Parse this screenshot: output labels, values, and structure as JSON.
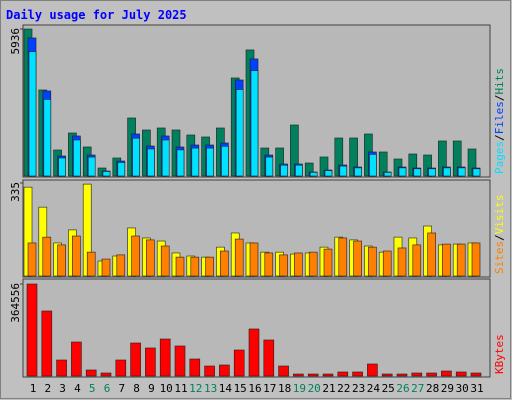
{
  "chart_data": [
    {
      "type": "bar",
      "title": "Daily usage for July 2025",
      "ylim": [
        0,
        5936
      ],
      "yticks": [
        5936
      ],
      "legend_separator": "/",
      "series": [
        {
          "name": "Hits",
          "color": "#00805c",
          "values": [
            5936,
            3474,
            1050,
            1737,
            1172,
            323,
            727,
            2343,
            1858,
            1939,
            1858,
            1656,
            1576,
            1939,
            3959,
            5090,
            1131,
            1131,
            2060,
            525,
            768,
            1535,
            1535,
            1697,
            970,
            687,
            889,
            848,
            1414,
            1414,
            1091
          ]
        },
        {
          "name": "Files",
          "color": "#0040ff",
          "values": [
            5575,
            3434,
            808,
            1616,
            848,
            202,
            606,
            1697,
            1212,
            1616,
            1172,
            1252,
            1252,
            1333,
            3878,
            4727,
            848,
            485,
            485,
            162,
            242,
            444,
            364,
            970,
            162,
            364,
            323,
            323,
            364,
            364,
            323
          ]
        },
        {
          "name": "Pages",
          "color": "#00e0ff",
          "values": [
            5018,
            3091,
            727,
            1454,
            763,
            182,
            545,
            1527,
            1091,
            1454,
            1055,
            1127,
            1127,
            1200,
            3490,
            4254,
            763,
            437,
            437,
            146,
            218,
            400,
            328,
            873,
            146,
            328,
            291,
            291,
            328,
            328,
            291
          ]
        }
      ]
    },
    {
      "type": "bar",
      "ylim": [
        0,
        335
      ],
      "yticks": [
        335
      ],
      "legend_separator": "/",
      "series": [
        {
          "name": "Visits",
          "color": "#ffff00",
          "values": [
            320,
            248,
            119,
            166,
            331,
            54,
            72,
            173,
            137,
            126,
            83,
            72,
            68,
            104,
            155,
            119,
            86,
            86,
            79,
            83,
            104,
            140,
            130,
            108,
            86,
            140,
            137,
            180,
            112,
            115,
            119
          ]
        },
        {
          "name": "Sites",
          "color": "#ff8000",
          "values": [
            119,
            140,
            112,
            144,
            86,
            61,
            76,
            144,
            130,
            108,
            68,
            68,
            68,
            90,
            133,
            119,
            83,
            76,
            83,
            86,
            97,
            137,
            126,
            104,
            90,
            101,
            112,
            155,
            115,
            115,
            119
          ]
        }
      ]
    },
    {
      "type": "bar",
      "ylim": [
        0,
        364556
      ],
      "yticks": [
        364556
      ],
      "categories": [
        "1",
        "2",
        "3",
        "4",
        "5",
        "6",
        "7",
        "8",
        "9",
        "10",
        "11",
        "12",
        "13",
        "14",
        "15",
        "16",
        "17",
        "18",
        "19",
        "20",
        "21",
        "22",
        "23",
        "24",
        "25",
        "26",
        "27",
        "28",
        "29",
        "30",
        "31"
      ],
      "category_colors": [
        "#000000",
        "#000000",
        "#000000",
        "#000000",
        "#00805c",
        "#00805c",
        "#000000",
        "#000000",
        "#000000",
        "#000000",
        "#000000",
        "#00805c",
        "#00805c",
        "#000000",
        "#000000",
        "#000000",
        "#000000",
        "#000000",
        "#00805c",
        "#00805c",
        "#000000",
        "#000000",
        "#000000",
        "#000000",
        "#000000",
        "#00805c",
        "#00805c",
        "#000000",
        "#000000",
        "#000000",
        "#000000"
      ],
      "series": [
        {
          "name": "KBytes",
          "color": "#ff0000",
          "values": [
            364556,
            257600,
            63400,
            134700,
            23800,
            11900,
            63400,
            130800,
            111000,
            146600,
            118900,
            67400,
            39600,
            43600,
            103000,
            186300,
            142700,
            39600,
            7900,
            7900,
            7900,
            15900,
            15900,
            47600,
            7900,
            7900,
            11900,
            11900,
            19800,
            15900,
            11900
          ]
        }
      ]
    }
  ]
}
